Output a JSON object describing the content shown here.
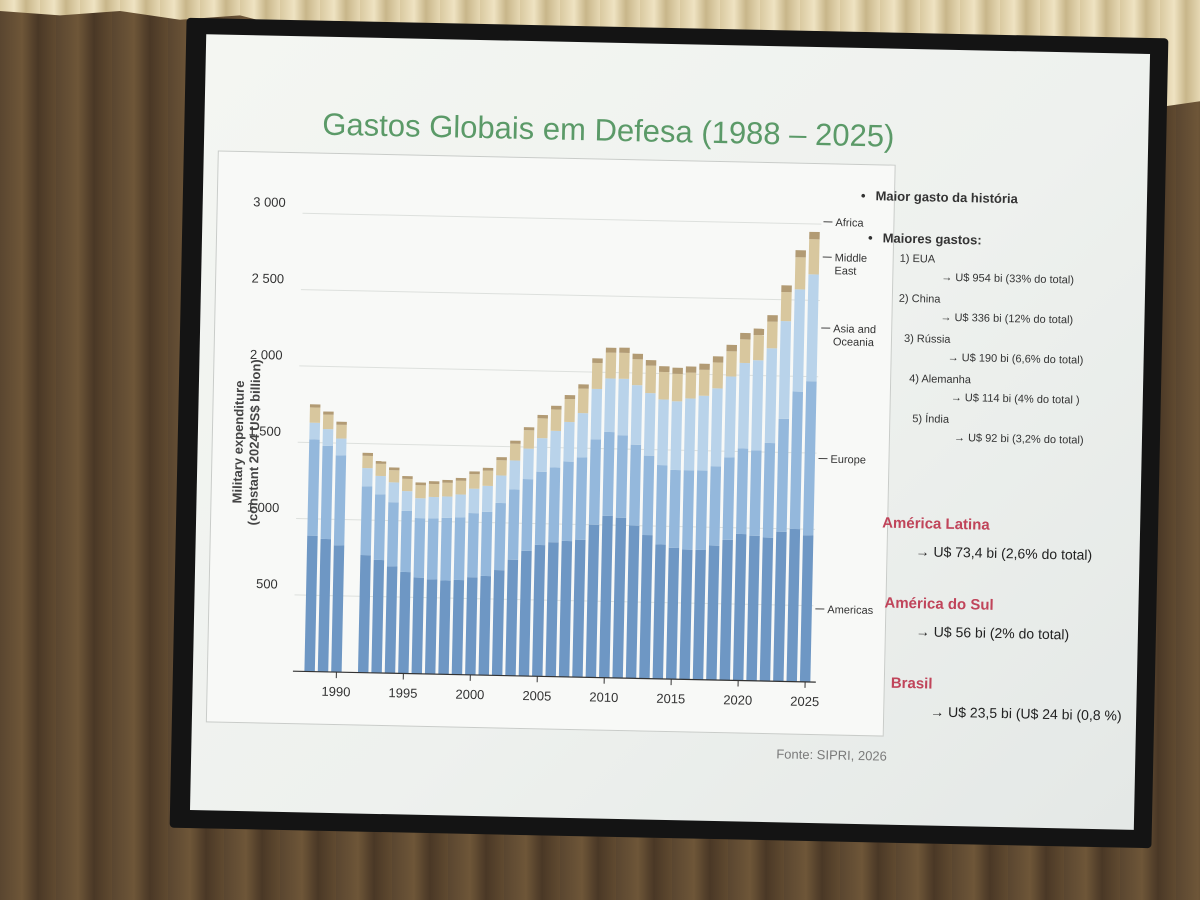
{
  "slide": {
    "title": "Gastos Globais em Defesa (1988 – 2025)",
    "source": "Fonte: SIPRI, 2026"
  },
  "side": {
    "bullet1": "Maior gasto da história",
    "bullet2": "Maiores gastos:",
    "ranks": [
      {
        "label": "1) EUA",
        "value": "→ U$ 954 bi (33% do total)"
      },
      {
        "label": "2) China",
        "value": "→ U$ 336 bi (12% do total)"
      },
      {
        "label": "3) Rússia",
        "value": "→ U$ 190 bi (6,6% do total)"
      },
      {
        "label": "4) Alemanha",
        "value": "→ U$ 114 bi (4% do total )"
      },
      {
        "label": "5) Índia",
        "value": "→ U$ 92 bi (3,2% do total)"
      }
    ],
    "regions": [
      {
        "title": "América Latina",
        "value": "→ U$ 73,4 bi (2,6% do total)"
      },
      {
        "title": "América do Sul",
        "value": "→ U$ 56 bi (2% do total)"
      },
      {
        "title": "Brasil",
        "value": "→ U$ 23,5 bi (U$ 24 bi  (0,8 %)"
      }
    ]
  },
  "chart_data": {
    "type": "bar",
    "stacked": true,
    "ylabel": "Military expenditure\n(constant 2024 US$ billion)",
    "ylim": [
      0,
      3000
    ],
    "yticks": [
      "3 000",
      "2 500",
      "2 000",
      "1 500",
      "1 000",
      "500"
    ],
    "ytick_values": [
      3000,
      2500,
      2000,
      1500,
      1000,
      500
    ],
    "xticks": [
      "1990",
      "1995",
      "2000",
      "2005",
      "2010",
      "2015",
      "2020",
      "2025"
    ],
    "xtick_values": [
      1990,
      1995,
      2000,
      2005,
      2010,
      2015,
      2020,
      2025
    ],
    "grid": true,
    "colors": {
      "Americas": "#6e97c4",
      "Europe": "#94b8dc",
      "Asia and Oceania": "#b9d3ea",
      "Middle East": "#d8c79e",
      "Africa": "#b29b74"
    },
    "series_labels": [
      "Africa",
      "Middle East",
      "Asia and Oceania",
      "Europe",
      "Americas"
    ],
    "categories": [
      1988,
      1989,
      1990,
      1991,
      1992,
      1993,
      1994,
      1995,
      1996,
      1997,
      1998,
      1999,
      2000,
      2001,
      2002,
      2003,
      2004,
      2005,
      2006,
      2007,
      2008,
      2009,
      2010,
      2011,
      2012,
      2013,
      2014,
      2015,
      2016,
      2017,
      2018,
      2019,
      2020,
      2021,
      2022,
      2023,
      2024,
      2025
    ],
    "series": [
      {
        "name": "Americas",
        "values": [
          890,
          870,
          830,
          null,
          770,
          740,
          700,
          665,
          630,
          620,
          615,
          620,
          640,
          650,
          690,
          760,
          820,
          860,
          880,
          890,
          900,
          1000,
          1060,
          1050,
          1000,
          940,
          880,
          860,
          850,
          850,
          880,
          920,
          960,
          950,
          940,
          980,
          1000,
          960
        ]
      },
      {
        "name": "Europe",
        "values": [
          630,
          610,
          590,
          null,
          450,
          430,
          420,
          400,
          390,
          400,
          410,
          410,
          420,
          420,
          440,
          460,
          470,
          480,
          490,
          520,
          540,
          560,
          550,
          540,
          530,
          520,
          520,
          510,
          520,
          520,
          520,
          540,
          560,
          560,
          620,
          740,
          900,
          1010
        ]
      },
      {
        "name": "Asia and Oceania",
        "values": [
          110,
          110,
          110,
          null,
          120,
          120,
          130,
          130,
          130,
          140,
          140,
          150,
          160,
          170,
          180,
          190,
          200,
          220,
          240,
          260,
          290,
          330,
          350,
          370,
          390,
          410,
          430,
          450,
          470,
          490,
          510,
          530,
          560,
          590,
          620,
          640,
          670,
          700
        ]
      },
      {
        "name": "Middle East",
        "values": [
          100,
          95,
          90,
          null,
          80,
          80,
          80,
          80,
          85,
          85,
          90,
          90,
          95,
          100,
          100,
          110,
          120,
          130,
          140,
          150,
          160,
          170,
          170,
          170,
          170,
          180,
          180,
          180,
          170,
          170,
          170,
          165,
          155,
          165,
          175,
          190,
          210,
          230
        ]
      },
      {
        "name": "Africa",
        "values": [
          20,
          20,
          20,
          null,
          20,
          18,
          18,
          18,
          18,
          18,
          18,
          18,
          18,
          18,
          20,
          20,
          20,
          22,
          24,
          26,
          28,
          30,
          32,
          34,
          36,
          36,
          38,
          40,
          40,
          40,
          40,
          42,
          42,
          42,
          42,
          44,
          46,
          48
        ]
      }
    ]
  }
}
